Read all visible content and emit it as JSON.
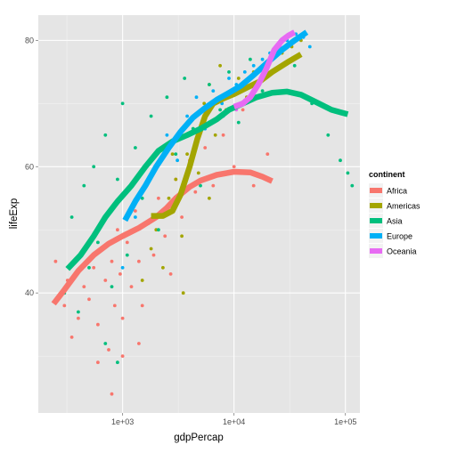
{
  "chart_data": {
    "type": "scatter",
    "title": "",
    "xlabel": "gdpPercap",
    "ylabel": "lifeExp",
    "x_scale": "log10",
    "xlim": [
      175,
      135000
    ],
    "ylim": [
      21,
      84
    ],
    "x_ticks": [
      1000,
      10000,
      100000
    ],
    "x_tick_labels": [
      "1e+03",
      "1e+04",
      "1e+05"
    ],
    "y_ticks": [
      40,
      60,
      80
    ],
    "y_tick_labels": [
      "40",
      "60",
      "80"
    ],
    "grid": true,
    "background": "#e5e5e5",
    "legend": {
      "title": "continent",
      "placement": "right",
      "entries": [
        "Africa",
        "Americas",
        "Asia",
        "Europe",
        "Oceania"
      ]
    },
    "series": [
      {
        "name": "Africa",
        "color": "#f8766d",
        "smooth": [
          [
            240,
            38.3
          ],
          [
            300,
            40.5
          ],
          [
            400,
            43.5
          ],
          [
            550,
            46
          ],
          [
            750,
            47.8
          ],
          [
            1000,
            49
          ],
          [
            1400,
            50.3
          ],
          [
            2000,
            52
          ],
          [
            2500,
            53.5
          ],
          [
            3000,
            55
          ],
          [
            4000,
            56.8
          ],
          [
            5000,
            57.8
          ],
          [
            7000,
            58.7
          ],
          [
            10000,
            59.2
          ],
          [
            14000,
            59.1
          ],
          [
            18000,
            58.4
          ],
          [
            22000,
            57.7
          ]
        ],
        "points": [
          [
            250,
            45
          ],
          [
            300,
            38
          ],
          [
            320,
            42
          ],
          [
            350,
            33
          ],
          [
            400,
            36
          ],
          [
            450,
            41
          ],
          [
            500,
            39
          ],
          [
            550,
            44
          ],
          [
            600,
            35
          ],
          [
            650,
            47
          ],
          [
            700,
            42
          ],
          [
            750,
            31
          ],
          [
            800,
            45
          ],
          [
            850,
            38
          ],
          [
            900,
            50
          ],
          [
            950,
            43
          ],
          [
            1000,
            36
          ],
          [
            1100,
            48
          ],
          [
            1200,
            41
          ],
          [
            1300,
            53
          ],
          [
            1400,
            45
          ],
          [
            1500,
            38
          ],
          [
            1700,
            51
          ],
          [
            1900,
            46
          ],
          [
            2100,
            55
          ],
          [
            2400,
            49
          ],
          [
            2700,
            43
          ],
          [
            3000,
            58
          ],
          [
            3400,
            52
          ],
          [
            4000,
            61
          ],
          [
            4500,
            56
          ],
          [
            5500,
            63
          ],
          [
            6500,
            57
          ],
          [
            8000,
            65
          ],
          [
            10000,
            60
          ],
          [
            12000,
            69
          ],
          [
            15000,
            57
          ],
          [
            20000,
            62
          ],
          [
            800,
            24
          ],
          [
            1000,
            30
          ],
          [
            1400,
            32
          ],
          [
            600,
            29
          ]
        ]
      },
      {
        "name": "Americas",
        "color": "#a3a500",
        "smooth": [
          [
            1800,
            52.2
          ],
          [
            2300,
            52.2
          ],
          [
            2800,
            53
          ],
          [
            3300,
            55.5
          ],
          [
            4000,
            60
          ],
          [
            4700,
            64.5
          ],
          [
            5500,
            68
          ],
          [
            6500,
            70
          ],
          [
            8000,
            70.8
          ],
          [
            10000,
            71.5
          ],
          [
            13000,
            72.5
          ],
          [
            17000,
            73.5
          ],
          [
            22000,
            75
          ],
          [
            30000,
            76.5
          ],
          [
            40000,
            77.8
          ]
        ],
        "points": [
          [
            1500,
            42
          ],
          [
            1800,
            47
          ],
          [
            2000,
            50
          ],
          [
            2300,
            44
          ],
          [
            2600,
            55
          ],
          [
            3000,
            58
          ],
          [
            3400,
            49
          ],
          [
            3800,
            62
          ],
          [
            4300,
            66
          ],
          [
            4800,
            59
          ],
          [
            5400,
            70
          ],
          [
            6000,
            73
          ],
          [
            6800,
            65
          ],
          [
            7500,
            76
          ],
          [
            8500,
            69
          ],
          [
            9500,
            72
          ],
          [
            11000,
            74
          ],
          [
            13000,
            71
          ],
          [
            15000,
            75
          ],
          [
            18000,
            76
          ],
          [
            22000,
            77
          ],
          [
            27000,
            78
          ],
          [
            33000,
            79
          ],
          [
            40000,
            80
          ],
          [
            3500,
            40
          ],
          [
            2800,
            62
          ],
          [
            6000,
            55
          ]
        ]
      },
      {
        "name": "Asia",
        "color": "#00bf7d",
        "smooth": [
          [
            320,
            43.8
          ],
          [
            420,
            46
          ],
          [
            550,
            49
          ],
          [
            700,
            52
          ],
          [
            900,
            54.5
          ],
          [
            1200,
            57
          ],
          [
            1600,
            60
          ],
          [
            2100,
            62.5
          ],
          [
            2800,
            64
          ],
          [
            3800,
            65
          ],
          [
            5000,
            66
          ],
          [
            7000,
            67.5
          ],
          [
            9000,
            69
          ],
          [
            12000,
            70
          ],
          [
            16000,
            71
          ],
          [
            22000,
            71.7
          ],
          [
            30000,
            71.9
          ],
          [
            40000,
            71.4
          ],
          [
            55000,
            70.2
          ],
          [
            75000,
            69
          ],
          [
            105000,
            68.3
          ]
        ],
        "points": [
          [
            300,
            40
          ],
          [
            350,
            52
          ],
          [
            400,
            37
          ],
          [
            450,
            57
          ],
          [
            500,
            44
          ],
          [
            550,
            60
          ],
          [
            600,
            48
          ],
          [
            700,
            65
          ],
          [
            800,
            41
          ],
          [
            900,
            58
          ],
          [
            1000,
            70
          ],
          [
            1100,
            46
          ],
          [
            1300,
            63
          ],
          [
            1500,
            55
          ],
          [
            1800,
            68
          ],
          [
            2100,
            50
          ],
          [
            2500,
            71
          ],
          [
            3000,
            62
          ],
          [
            3600,
            74
          ],
          [
            4300,
            66
          ],
          [
            5000,
            57
          ],
          [
            6000,
            73
          ],
          [
            7500,
            69
          ],
          [
            9000,
            75
          ],
          [
            11000,
            67
          ],
          [
            14000,
            77
          ],
          [
            18000,
            72
          ],
          [
            25000,
            79
          ],
          [
            35000,
            76
          ],
          [
            50000,
            70
          ],
          [
            70000,
            65
          ],
          [
            90000,
            61
          ],
          [
            105000,
            59
          ],
          [
            115000,
            57
          ],
          [
            900,
            29
          ],
          [
            700,
            32
          ]
        ]
      },
      {
        "name": "Europe",
        "color": "#00b0f6",
        "smooth": [
          [
            1050,
            51.5
          ],
          [
            1300,
            54.5
          ],
          [
            1600,
            57
          ],
          [
            2000,
            60
          ],
          [
            2600,
            63
          ],
          [
            3300,
            65.5
          ],
          [
            4300,
            67.8
          ],
          [
            5500,
            69.3
          ],
          [
            7000,
            70.6
          ],
          [
            9000,
            71.7
          ],
          [
            11500,
            72.8
          ],
          [
            15000,
            74.5
          ],
          [
            20000,
            76.5
          ],
          [
            27000,
            78.5
          ],
          [
            35000,
            80
          ],
          [
            45000,
            81.3
          ]
        ],
        "points": [
          [
            1000,
            44
          ],
          [
            1300,
            52
          ],
          [
            1600,
            57
          ],
          [
            2000,
            62
          ],
          [
            2500,
            65
          ],
          [
            3100,
            61
          ],
          [
            3800,
            68
          ],
          [
            4600,
            71
          ],
          [
            5500,
            66
          ],
          [
            6500,
            72
          ],
          [
            7800,
            70
          ],
          [
            9000,
            74
          ],
          [
            10500,
            73
          ],
          [
            12500,
            75
          ],
          [
            15000,
            76
          ],
          [
            18000,
            77
          ],
          [
            21000,
            78
          ],
          [
            25000,
            79
          ],
          [
            30000,
            80
          ],
          [
            36000,
            81
          ],
          [
            42000,
            80.5
          ],
          [
            48000,
            79
          ],
          [
            8000,
            68
          ],
          [
            3000,
            55
          ]
        ]
      },
      {
        "name": "Oceania",
        "color": "#e76bf3",
        "smooth": [
          [
            10000,
            69.5
          ],
          [
            12000,
            70
          ],
          [
            14000,
            71
          ],
          [
            16500,
            73
          ],
          [
            19500,
            75.5
          ],
          [
            23000,
            78.5
          ],
          [
            27000,
            80
          ],
          [
            31000,
            80.8
          ],
          [
            35000,
            81.3
          ]
        ],
        "points": [
          [
            10500,
            69
          ],
          [
            12500,
            70.5
          ],
          [
            15000,
            71.5
          ],
          [
            18000,
            74
          ],
          [
            22000,
            77
          ],
          [
            26000,
            79
          ],
          [
            30000,
            80.5
          ],
          [
            34000,
            81
          ]
        ]
      }
    ]
  }
}
